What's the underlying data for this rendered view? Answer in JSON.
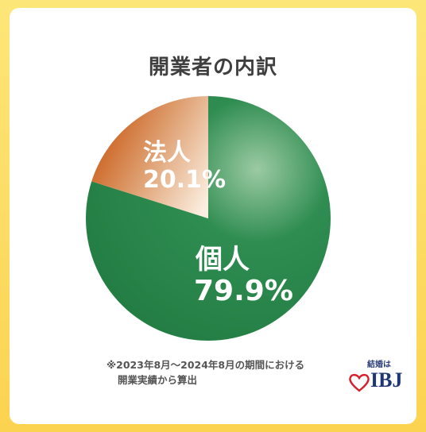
{
  "chart_data": {
    "type": "pie",
    "title": "開業者の内訳",
    "slices": [
      {
        "label": "個人",
        "value": 79.9,
        "value_text": "79.9%",
        "color": "#2a8a4e"
      },
      {
        "label": "法人",
        "value": 20.1,
        "value_text": "20.1%",
        "color": "#c95f1b"
      }
    ]
  },
  "footnote": {
    "line1": "※2023年8月～2024年8月の期間における",
    "line2": "開業実績から算出"
  },
  "logo": {
    "tagline": "結婚は",
    "brand": "IBJ",
    "heart_color": "#d6202e",
    "text_color": "#1e3576"
  }
}
